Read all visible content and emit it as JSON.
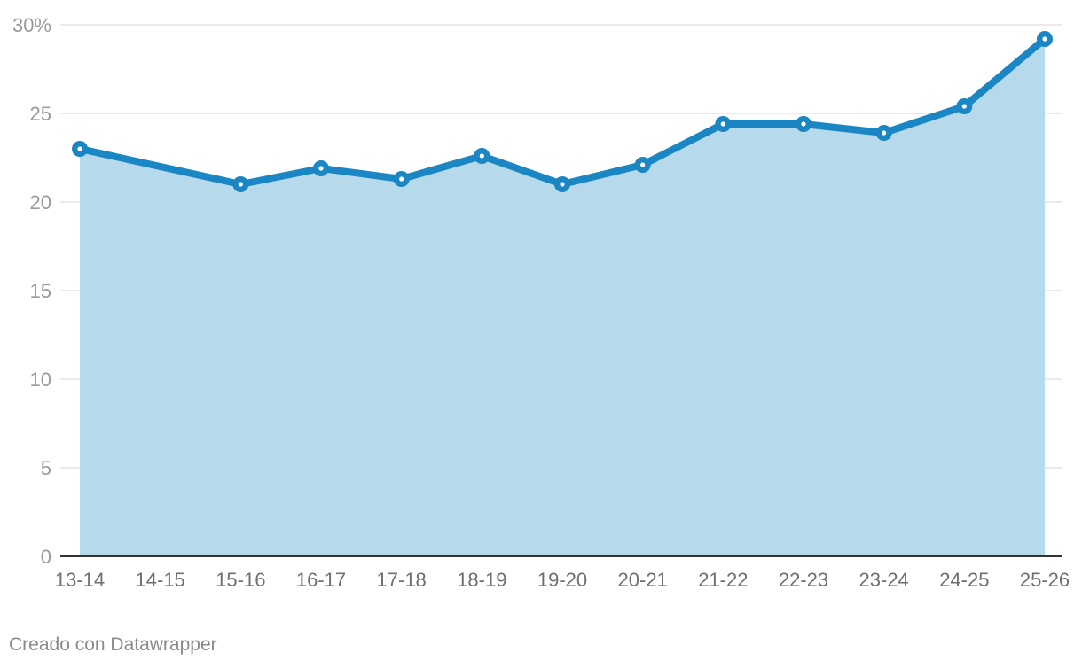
{
  "chart_data": {
    "type": "area",
    "categories": [
      "13-14",
      "14-15",
      "15-16",
      "16-17",
      "17-18",
      "18-19",
      "19-20",
      "20-21",
      "21-22",
      "22-23",
      "23-24",
      "24-25",
      "25-26"
    ],
    "series": [
      {
        "values": [
          23.0,
          null,
          21.0,
          21.9,
          21.3,
          22.6,
          21.0,
          22.1,
          24.4,
          24.4,
          23.9,
          25.4,
          29.2
        ]
      }
    ],
    "y_ticks": [
      "0",
      "5",
      "10",
      "15",
      "20",
      "25",
      "30%"
    ],
    "ylim": [
      0,
      30
    ],
    "grid": true,
    "colors": {
      "line": "#1a86c3",
      "area": "#b6d9ec",
      "grid": "#dedede",
      "axis": "#333333"
    }
  },
  "footer": {
    "credit": "Creado con Datawrapper"
  }
}
